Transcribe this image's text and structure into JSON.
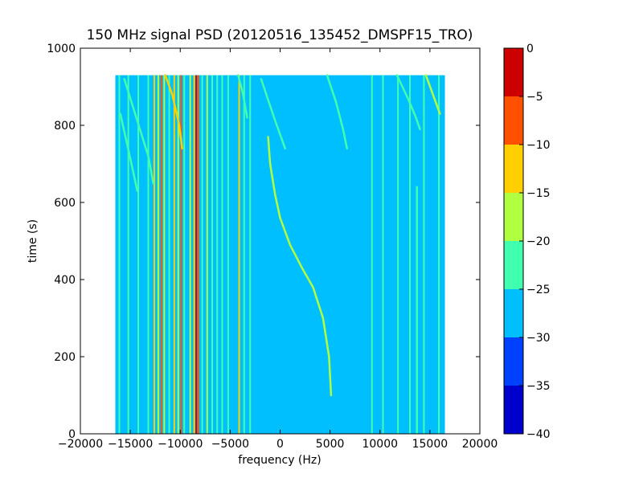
{
  "chart_data": {
    "type": "heatmap",
    "title": "150 MHz signal PSD (20120516_135452_DMSPF15_TRO)",
    "xlabel": "frequency (Hz)",
    "ylabel": "time (s)",
    "xlim": [
      -20000,
      20000
    ],
    "ylim": [
      0,
      1000
    ],
    "x_ticks": [
      -20000,
      -15000,
      -10000,
      -5000,
      0,
      5000,
      10000,
      15000,
      20000
    ],
    "x_tick_labels": [
      "−20000",
      "−15000",
      "−10000",
      "−5000",
      "0",
      "5000",
      "10000",
      "15000",
      "20000"
    ],
    "y_ticks": [
      0,
      200,
      400,
      600,
      800,
      1000
    ],
    "y_tick_labels": [
      "0",
      "200",
      "400",
      "600",
      "800",
      "1000"
    ],
    "data_extent": {
      "x": [
        -16500,
        16500
      ],
      "y": [
        0,
        930
      ]
    },
    "background_level": "-30 to -25",
    "colorbar": {
      "levels": [
        -40,
        -35,
        -30,
        -25,
        -20,
        -15,
        -10,
        -5,
        0
      ],
      "tick_labels": [
        "−40",
        "−35",
        "−30",
        "−25",
        "−20",
        "−15",
        "−10",
        "−5",
        "0"
      ],
      "colors": [
        "#0000cc",
        "#0040ff",
        "#00bfff",
        "#40ffaf",
        "#b0ff40",
        "#ffcf00",
        "#ff5000",
        "#cc0000"
      ]
    },
    "vertical_lines": [
      {
        "f": -16100,
        "level": "-25 to -20"
      },
      {
        "f": -15200,
        "level": "-25 to -20"
      },
      {
        "f": -14200,
        "level": "-25 to -20"
      },
      {
        "f": -13200,
        "level": "-25 to -20"
      },
      {
        "f": -12600,
        "level": "-15 to -10"
      },
      {
        "f": -12200,
        "level": "-20 to -15"
      },
      {
        "f": -11900,
        "level": "-10 to -5"
      },
      {
        "f": -11600,
        "level": "-20 to -15"
      },
      {
        "f": -11100,
        "level": "-25 to -20"
      },
      {
        "f": -10600,
        "level": "-15 to -10"
      },
      {
        "f": -10200,
        "level": "-20 to -15"
      },
      {
        "f": -9900,
        "level": "-10 to -5"
      },
      {
        "f": -9600,
        "level": "-25 to -20"
      },
      {
        "f": -9000,
        "level": "-20 to -15"
      },
      {
        "f": -8600,
        "level": "-15 to -10"
      },
      {
        "f": -8400,
        "level": "-5 to 0"
      },
      {
        "f": -8200,
        "level": "-10 to -5"
      },
      {
        "f": -7800,
        "level": "-25 to -20"
      },
      {
        "f": -7300,
        "level": "-20 to -15"
      },
      {
        "f": -6800,
        "level": "-25 to -20"
      },
      {
        "f": -6300,
        "level": "-25 to -20"
      },
      {
        "f": -5800,
        "level": "-25 to -20"
      },
      {
        "f": -5200,
        "level": "-25 to -20"
      },
      {
        "f": -4100,
        "level": "-15 to -10"
      },
      {
        "f": -3600,
        "level": "-25 to -20"
      },
      {
        "f": -3000,
        "level": "-25 to -20"
      },
      {
        "f": 9200,
        "level": "-25 to -20"
      },
      {
        "f": 10300,
        "level": "-25 to -20"
      },
      {
        "f": 11800,
        "level": "-25 to -20"
      },
      {
        "f": 13000,
        "level": "-25 to -20"
      },
      {
        "f": 14400,
        "level": "-25 to -20"
      },
      {
        "f": 15900,
        "level": "-25 to -20"
      }
    ],
    "drift_curves": [
      {
        "points": [
          [
            -11500,
            930
          ],
          [
            -10800,
            880
          ],
          [
            -10100,
            800
          ],
          [
            -9800,
            740
          ]
        ],
        "level": "-15 to -10"
      },
      {
        "points": [
          [
            -16000,
            830
          ],
          [
            -15400,
            760
          ],
          [
            -14800,
            690
          ],
          [
            -14300,
            630
          ]
        ],
        "level": "-25 to -20"
      },
      {
        "points": [
          [
            -15600,
            920
          ],
          [
            -14400,
            820
          ],
          [
            -13200,
            720
          ],
          [
            -12700,
            650
          ]
        ],
        "level": "-25 to -20"
      },
      {
        "points": [
          [
            -4200,
            930
          ],
          [
            -3700,
            880
          ],
          [
            -3300,
            820
          ]
        ],
        "level": "-25 to -20"
      },
      {
        "points": [
          [
            -1900,
            920
          ],
          [
            -600,
            820
          ],
          [
            500,
            740
          ]
        ],
        "level": "-25 to -20"
      },
      {
        "points": [
          [
            -1200,
            770
          ],
          [
            -1000,
            700
          ],
          [
            -500,
            620
          ],
          [
            0,
            560
          ],
          [
            1000,
            490
          ],
          [
            2200,
            430
          ],
          [
            3300,
            380
          ],
          [
            4300,
            300
          ],
          [
            4900,
            200
          ],
          [
            5100,
            100
          ]
        ],
        "level": "-20 to -15"
      },
      {
        "points": [
          [
            4700,
            930
          ],
          [
            5600,
            860
          ],
          [
            6300,
            790
          ],
          [
            6700,
            740
          ]
        ],
        "level": "-25 to -20"
      },
      {
        "points": [
          [
            11700,
            930
          ],
          [
            12800,
            870
          ],
          [
            13600,
            820
          ],
          [
            14000,
            790
          ]
        ],
        "level": "-25 to -20"
      },
      {
        "points": [
          [
            14600,
            930
          ],
          [
            15300,
            880
          ],
          [
            16000,
            830
          ]
        ],
        "level": "-20 to -15"
      },
      {
        "points": [
          [
            13700,
            640
          ],
          [
            13700,
            0
          ]
        ],
        "level": "-25 to -20"
      }
    ]
  }
}
